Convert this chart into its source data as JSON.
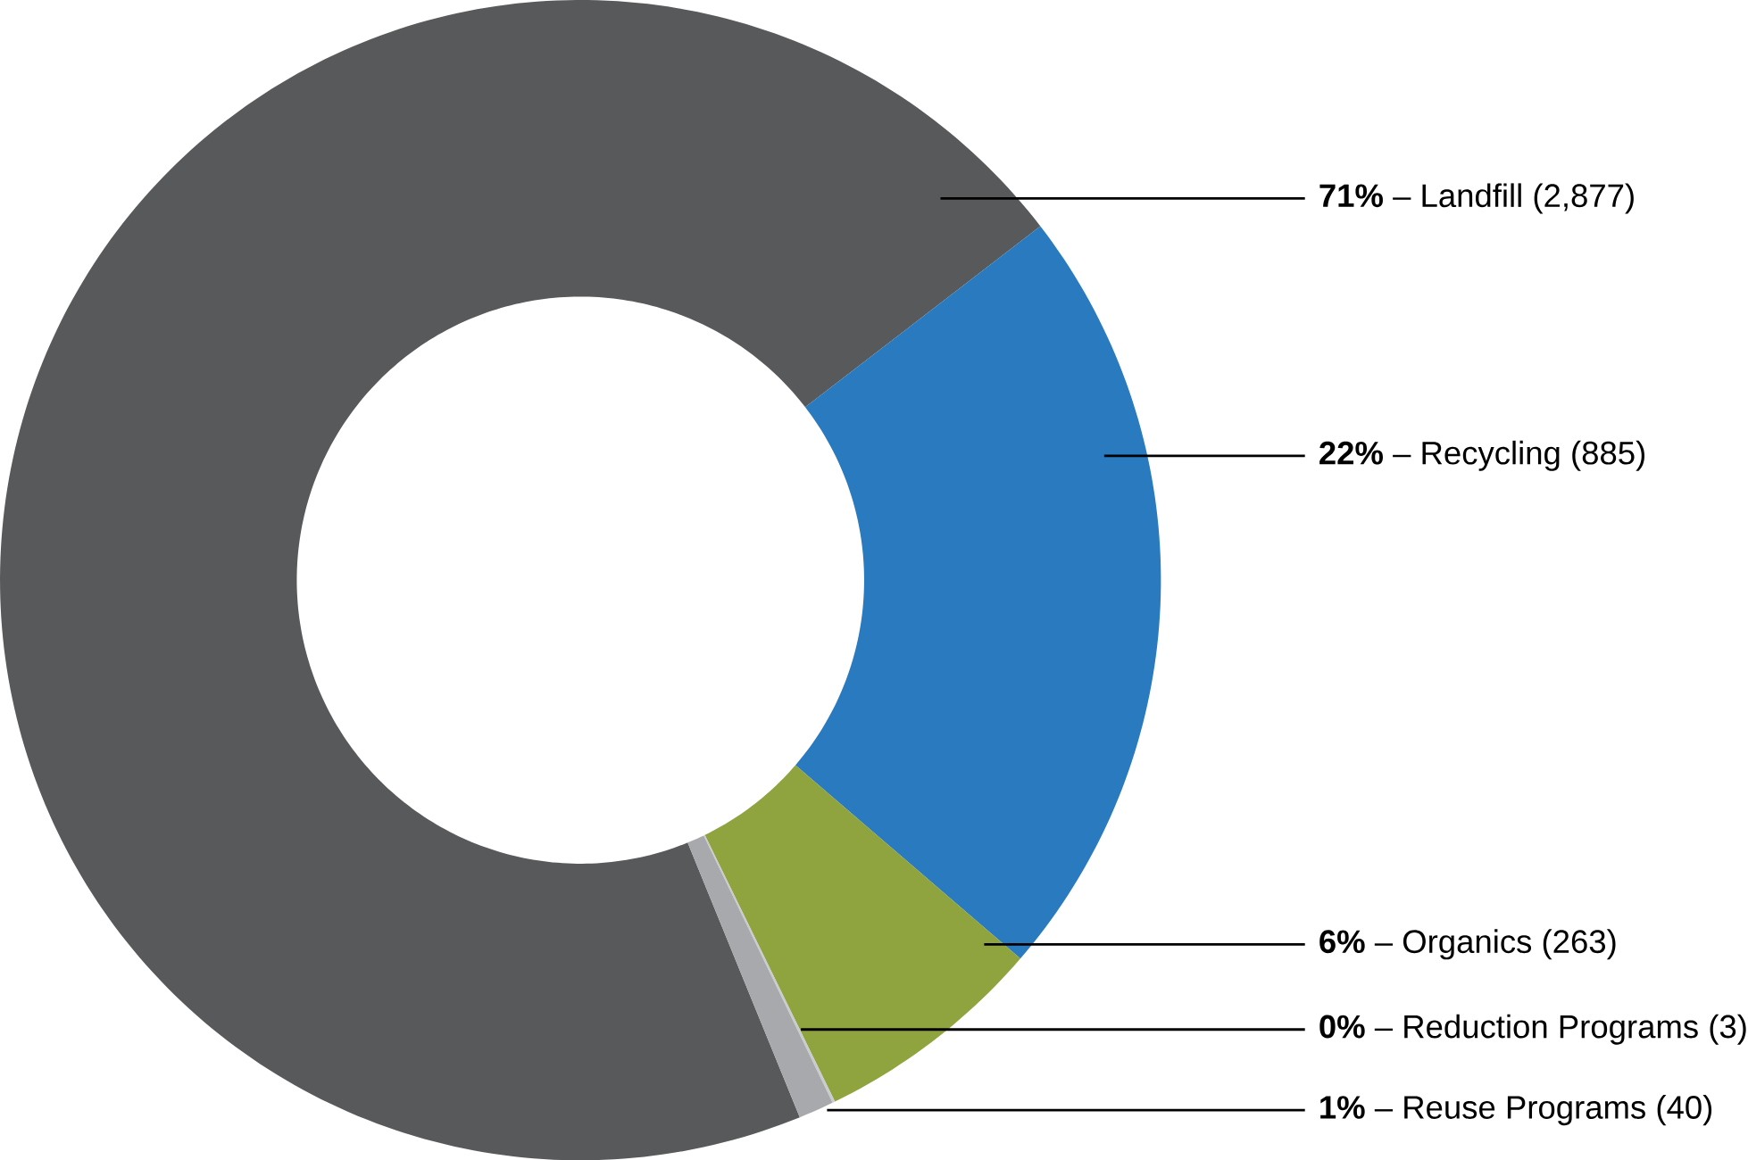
{
  "chart_data": {
    "type": "donut",
    "categories": [
      "**71%** – Landfill (2,877)",
      "**22%** – Recycling (885)",
      "**6%** – Organics (263)",
      "**0%** – Reduction Programs (3)",
      "**1%** – Reuse Programs (40)"
    ],
    "values": [
      2877,
      885,
      263,
      3,
      40
    ],
    "colors": [
      "#58595b",
      "#2a7abf",
      "#8fa33f",
      "#c9cbcd",
      "#a7a9ac"
    ]
  }
}
